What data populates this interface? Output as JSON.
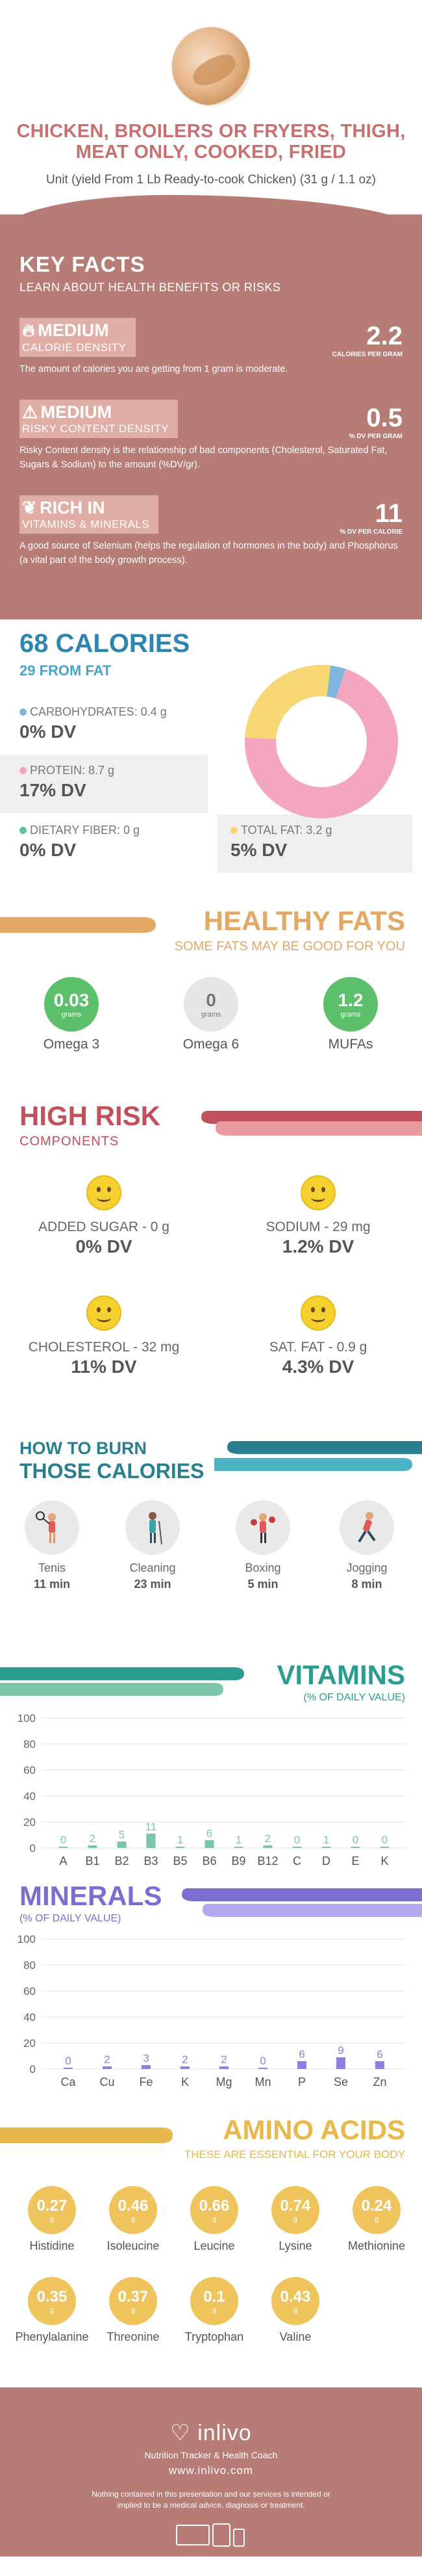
{
  "header": {
    "title": "CHICKEN, BROILERS OR FRYERS, THIGH, MEAT ONLY, COOKED, FRIED",
    "unit": "Unit (yield From 1 Lb Ready-to-cook Chicken) (31 g / 1.1 oz)"
  },
  "key_facts": {
    "title": "KEY FACTS",
    "subtitle": "LEARN ABOUT HEALTH BENEFITS OR RISKS",
    "items": [
      {
        "level": "MEDIUM",
        "label": "CALORIE DENSITY",
        "value": "2.2",
        "unit": "CALORIES PER GRAM",
        "desc": "The amount of calories you are getting from 1 gram is moderate."
      },
      {
        "level": "MEDIUM",
        "label": "RISKY CONTENT DENSITY",
        "value": "0.5",
        "unit": "% DV PER GRAM",
        "desc": "Risky Content density is the relationship of bad components (Cholesterol, Saturated Fat, Sugars & Sodium) to the amount (%DV/gr)."
      },
      {
        "level": "RICH  IN",
        "label": "VITAMINS & MINERALS",
        "value": "11",
        "unit": "% DV PER CALORIE",
        "desc": "A good source of Selenium (helps the regulation of hormones in the body) and Phosphorus (a vital part of the body growth process)."
      }
    ]
  },
  "calories": {
    "title": "68 CALORIES",
    "subtitle": "29 FROM FAT",
    "carbs": {
      "label": "CARBOHYDRATES: 0.4 g",
      "dv": "0% DV"
    },
    "protein": {
      "label": "PROTEIN: 8.7 g",
      "dv": "17% DV"
    },
    "fiber": {
      "label": "DIETARY FIBER: 0 g",
      "dv": "0% DV"
    },
    "fat": {
      "label": "TOTAL FAT: 3.2 g",
      "dv": "5% DV"
    }
  },
  "chart_data": [
    {
      "type": "pie",
      "categories": [
        "Carbohydrates",
        "Protein",
        "Total Fat"
      ],
      "values": [
        0.4,
        8.7,
        3.2
      ],
      "colors": [
        "#7fb6e0",
        "#f4a6c0",
        "#f7d774"
      ]
    },
    {
      "type": "bar",
      "title": "VITAMINS",
      "subtitle": "(% OF DAILY VALUE)",
      "categories": [
        "A",
        "B1",
        "B2",
        "B3",
        "B5",
        "B6",
        "B9",
        "B12",
        "C",
        "D",
        "E",
        "K"
      ],
      "values": [
        0,
        2,
        5,
        11,
        1,
        6,
        1,
        2,
        0,
        1,
        0,
        0
      ],
      "ylim": [
        0,
        100
      ],
      "yticks": [
        0,
        20,
        40,
        60,
        80,
        100
      ],
      "color": "#7bc5a8"
    },
    {
      "type": "bar",
      "title": "MINERALS",
      "subtitle": "(% OF DAILY VALUE)",
      "categories": [
        "Ca",
        "Cu",
        "Fe",
        "K",
        "Mg",
        "Mn",
        "P",
        "Se",
        "Zn"
      ],
      "values": [
        0,
        2,
        3,
        2,
        2,
        0,
        6,
        9,
        6
      ],
      "ylim": [
        0,
        100
      ],
      "yticks": [
        0,
        20,
        40,
        60,
        80,
        100
      ],
      "color": "#8e7fe0"
    }
  ],
  "healthy_fats": {
    "title": "HEALTHY FATS",
    "subtitle": "SOME FATS MAY BE GOOD FOR YOU",
    "items": [
      {
        "value": "0.03",
        "unit": "grams",
        "name": "Omega 3",
        "color": "#5cbf6a"
      },
      {
        "value": "0",
        "unit": "grams",
        "name": "Omega 6",
        "color": "#e6e6e6"
      },
      {
        "value": "1.2",
        "unit": "grams",
        "name": "MUFAs",
        "color": "#5cbf6a"
      }
    ]
  },
  "high_risk": {
    "title": "HIGH RISK",
    "subtitle": "COMPONENTS",
    "items": [
      {
        "label": "ADDED SUGAR - 0 g",
        "dv": "0% DV"
      },
      {
        "label": "SODIUM - 29 mg",
        "dv": "1.2% DV"
      },
      {
        "label": "CHOLESTEROL - 32 mg",
        "dv": "11% DV"
      },
      {
        "label": "SAT. FAT - 0.9 g",
        "dv": "4.3% DV"
      }
    ]
  },
  "burn": {
    "title1": "HOW TO BURN",
    "title2": "THOSE CALORIES",
    "items": [
      {
        "name": "Tenis",
        "minutes": "11 min",
        "icon": "tennis-icon"
      },
      {
        "name": "Cleaning",
        "minutes": "23 min",
        "icon": "cleaning-icon"
      },
      {
        "name": "Boxing",
        "minutes": "5 min",
        "icon": "boxing-icon"
      },
      {
        "name": "Jogging",
        "minutes": "8 min",
        "icon": "jogging-icon"
      }
    ]
  },
  "amino": {
    "title": "AMINO ACIDS",
    "subtitle": "THESE ARE ESSENTIAL FOR YOUR BODY",
    "unit": "g",
    "items": [
      {
        "value": "0.27",
        "name": "Histidine"
      },
      {
        "value": "0.46",
        "name": "Isoleucine"
      },
      {
        "value": "0.66",
        "name": "Leucine"
      },
      {
        "value": "0.74",
        "name": "Lysine"
      },
      {
        "value": "0.24",
        "name": "Methionine"
      },
      {
        "value": "0.35",
        "name": "Phenylalanine"
      },
      {
        "value": "0.37",
        "name": "Threonine"
      },
      {
        "value": "0.1",
        "name": "Tryptophan"
      },
      {
        "value": "0.43",
        "name": "Valine"
      }
    ]
  },
  "footer": {
    "brand": "inlivo",
    "tagline": "Nutrition Tracker & Health Coach",
    "url": "www.inlivo.com",
    "disclaimer": "Nothing contained in this presentation and our services is intended or implied to be a medical advice, diagnosis or treatment.",
    "available": "Available on your desktop, tablet and mobile phone"
  }
}
